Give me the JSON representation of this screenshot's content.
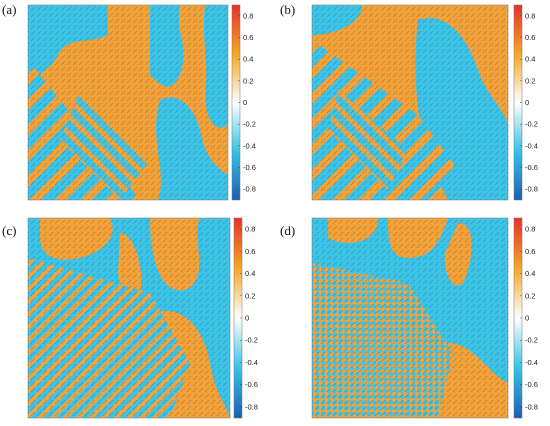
{
  "panels": [
    {
      "label": "(a)",
      "pattern": "stripes-coarse"
    },
    {
      "label": "(b)",
      "pattern": "stripes-diagonal"
    },
    {
      "label": "(c)",
      "pattern": "stripes-fine"
    },
    {
      "label": "(d)",
      "pattern": "checkerboard"
    }
  ],
  "colorbar": {
    "ticks": [
      "0.8",
      "0.6",
      "0.4",
      "0.2",
      "0",
      "-0.2",
      "-0.4",
      "-0.6",
      "-0.8"
    ],
    "range": [
      -0.9,
      0.9
    ],
    "colors": {
      "top": "#e8312a",
      "orange": "#f5a623",
      "white": "#ffffff",
      "cyan": "#35c3e6",
      "bottom": "#1a5fb4"
    }
  },
  "field_colors": {
    "positive": "#f3a23a",
    "negative": "#3cc4e8",
    "interface": "#ffffff"
  }
}
